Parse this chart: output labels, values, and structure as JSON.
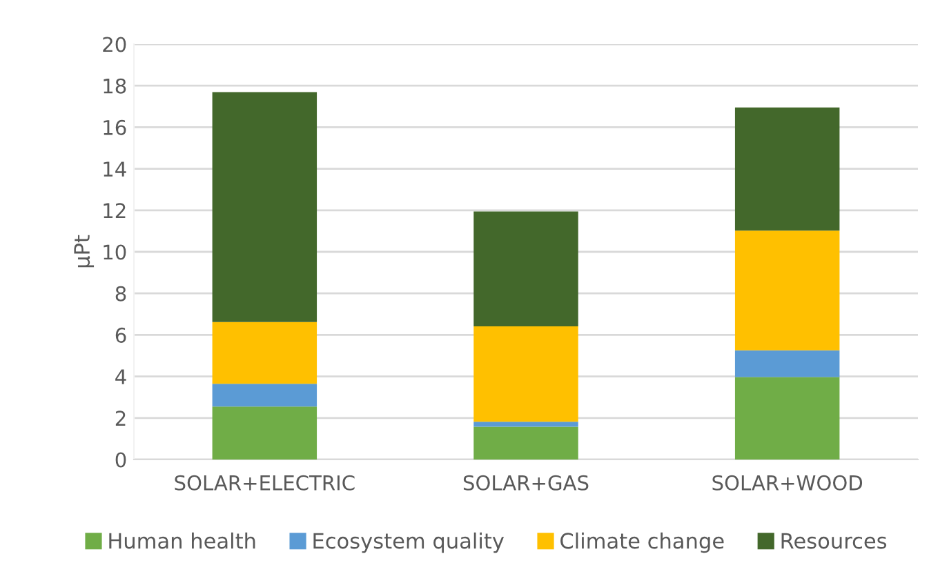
{
  "chart_data": {
    "type": "bar",
    "ylabel": "µPt",
    "stacked": true,
    "categories": [
      "SOLAR+ELECTRIC",
      "SOLAR+GAS",
      "SOLAR+WOOD"
    ],
    "series": [
      {
        "name": "Human health",
        "color": "#70ad47",
        "values": [
          2.55,
          1.58,
          3.97
        ]
      },
      {
        "name": "Ecosystem quality",
        "color": "#5b9bd5",
        "values": [
          1.1,
          0.24,
          1.29
        ]
      },
      {
        "name": "Climate change",
        "color": "#ffc000",
        "values": [
          2.97,
          4.59,
          5.76
        ]
      },
      {
        "name": "Resources",
        "color": "#43682b",
        "values": [
          11.07,
          5.53,
          5.93
        ]
      }
    ],
    "ylim": [
      0,
      20
    ],
    "yticks": [
      0,
      2,
      4,
      6,
      8,
      10,
      12,
      14,
      16,
      18,
      20
    ],
    "grid": "y",
    "legend": "bottom"
  }
}
